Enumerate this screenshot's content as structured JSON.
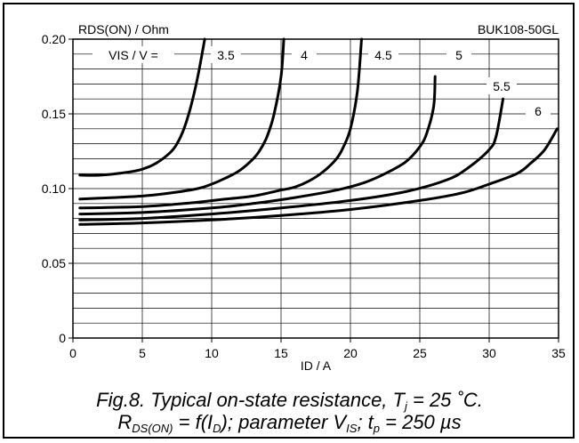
{
  "chart_data": {
    "type": "line",
    "ylabel": "RDS(ON) / Ohm",
    "xlabel": "ID / A",
    "device": "BUK108-50GL",
    "parameter_label": "VIS / V =",
    "xlim": [
      0,
      35
    ],
    "ylim": [
      0,
      0.2
    ],
    "x_ticks": [
      "0",
      "5",
      "10",
      "15",
      "20",
      "25",
      "30",
      "35"
    ],
    "y_ticks": [
      "0",
      "0.05",
      "0.10",
      "0.15",
      "0.20"
    ],
    "grid": true,
    "series": [
      {
        "name": "3.5",
        "x": [
          0.5,
          2,
          4,
          5,
          6,
          7,
          7.5,
          8,
          8.5,
          9,
          9.5
        ],
        "y": [
          0.109,
          0.109,
          0.111,
          0.113,
          0.117,
          0.124,
          0.13,
          0.14,
          0.155,
          0.175,
          0.2
        ]
      },
      {
        "name": "4",
        "x": [
          0.5,
          3,
          5,
          7,
          9,
          10,
          11,
          12,
          13,
          13.5,
          14,
          14.5,
          15,
          15.2
        ],
        "y": [
          0.093,
          0.094,
          0.095,
          0.097,
          0.1,
          0.103,
          0.107,
          0.112,
          0.12,
          0.126,
          0.135,
          0.15,
          0.175,
          0.2
        ]
      },
      {
        "name": "4.5",
        "x": [
          0.5,
          5,
          8,
          11,
          13,
          15,
          16,
          17,
          18,
          19,
          19.5,
          20,
          20.5,
          20.8
        ],
        "y": [
          0.087,
          0.088,
          0.09,
          0.093,
          0.095,
          0.099,
          0.101,
          0.105,
          0.111,
          0.12,
          0.128,
          0.14,
          0.165,
          0.2
        ]
      },
      {
        "name": "5",
        "x": [
          0.5,
          5,
          10,
          13,
          16,
          19,
          21,
          22.5,
          24,
          25,
          25.5,
          26,
          26.1
        ],
        "y": [
          0.083,
          0.084,
          0.087,
          0.09,
          0.094,
          0.099,
          0.104,
          0.11,
          0.118,
          0.128,
          0.137,
          0.155,
          0.175
        ]
      },
      {
        "name": "5.5",
        "x": [
          0.5,
          5,
          10,
          15,
          20,
          24,
          27,
          28.5,
          30,
          30.5,
          31
        ],
        "y": [
          0.079,
          0.08,
          0.083,
          0.087,
          0.092,
          0.098,
          0.106,
          0.114,
          0.126,
          0.135,
          0.16
        ]
      },
      {
        "name": "6",
        "x": [
          0.5,
          5,
          10,
          15,
          20,
          25,
          28,
          30,
          32,
          33,
          34,
          34.9
        ],
        "y": [
          0.076,
          0.077,
          0.079,
          0.082,
          0.086,
          0.092,
          0.097,
          0.103,
          0.11,
          0.117,
          0.126,
          0.14
        ]
      }
    ],
    "caption_line1": "Fig.8.   Typical on-state resistance, T",
    "caption_line1_sub": "j",
    "caption_line1_end": " = 25 ˚C.",
    "caption_line2_a": "R",
    "caption_line2_sub_a": "DS(ON)",
    "caption_line2_b": " = f(I",
    "caption_line2_sub_b": "D",
    "caption_line2_c": "); parameter V",
    "caption_line2_sub_c": "IS",
    "caption_line2_d": "; t",
    "caption_line2_sub_d": "p",
    "caption_line2_e": " = 250 µs"
  }
}
